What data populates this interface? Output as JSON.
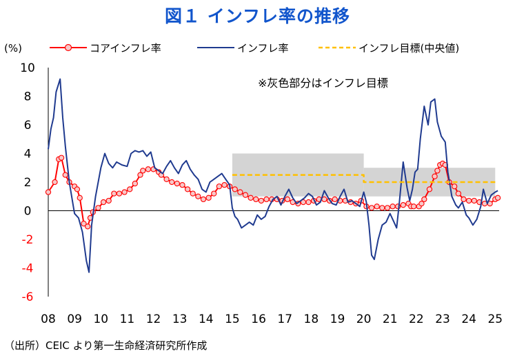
{
  "title": "図１ インフレ率の推移",
  "source": "（出所）CEIC より第一生命経済研究所作成",
  "chart_data": {
    "type": "line",
    "unit_label": "(%)",
    "annotation": "※灰色部分はインフレ目標",
    "ylim": [
      -6,
      10
    ],
    "yticks": [
      -6,
      -4,
      -2,
      0,
      2,
      4,
      6,
      8,
      10
    ],
    "xlim": [
      2008.0,
      2025.15
    ],
    "x_tick_labels": [
      "08",
      "09",
      "10",
      "11",
      "12",
      "13",
      "14",
      "15",
      "16",
      "17",
      "18",
      "19",
      "20",
      "21",
      "22",
      "23",
      "24",
      "25"
    ],
    "legend_position": "top",
    "grid": false,
    "target_bands": [
      {
        "x_start": 2015.0,
        "x_end": 2020.0,
        "low": 1,
        "high": 4
      },
      {
        "x_start": 2020.0,
        "x_end": 2025.0,
        "low": 1,
        "high": 3
      }
    ],
    "series": [
      {
        "name": "コアインフレ率",
        "style": "line-with-markers",
        "color": "#ff0000",
        "x": [
          2008.0,
          2008.25,
          2008.4,
          2008.5,
          2008.65,
          2008.8,
          2009.0,
          2009.1,
          2009.2,
          2009.35,
          2009.5,
          2009.6,
          2009.7,
          2009.9,
          2010.1,
          2010.3,
          2010.5,
          2010.7,
          2010.9,
          2011.1,
          2011.3,
          2011.5,
          2011.6,
          2011.8,
          2012.0,
          2012.2,
          2012.3,
          2012.5,
          2012.7,
          2012.9,
          2013.1,
          2013.3,
          2013.5,
          2013.7,
          2013.9,
          2014.1,
          2014.3,
          2014.5,
          2014.7,
          2014.9,
          2015.1,
          2015.3,
          2015.5,
          2015.7,
          2015.9,
          2016.1,
          2016.3,
          2016.5,
          2016.7,
          2016.9,
          2017.1,
          2017.3,
          2017.5,
          2017.7,
          2017.9,
          2018.1,
          2018.3,
          2018.5,
          2018.7,
          2018.9,
          2019.1,
          2019.3,
          2019.5,
          2019.7,
          2019.9,
          2020.1,
          2020.3,
          2020.5,
          2020.7,
          2020.9,
          2021.1,
          2021.3,
          2021.5,
          2021.7,
          2021.8,
          2021.9,
          2022.1,
          2022.2,
          2022.3,
          2022.5,
          2022.7,
          2022.8,
          2022.9,
          2023.0,
          2023.1,
          2023.25,
          2023.45,
          2023.6,
          2023.8,
          2024.0,
          2024.2,
          2024.4,
          2024.6,
          2024.8,
          2025.0,
          2025.1
        ],
        "values": [
          1.3,
          2.0,
          3.6,
          3.7,
          2.5,
          2.0,
          1.7,
          1.5,
          0.9,
          -0.9,
          -1.1,
          -0.5,
          -0.1,
          0.2,
          0.6,
          0.7,
          1.2,
          1.2,
          1.3,
          1.5,
          1.9,
          2.5,
          2.8,
          2.9,
          2.9,
          2.7,
          2.5,
          2.2,
          2.0,
          1.9,
          1.8,
          1.5,
          1.2,
          1.0,
          0.8,
          0.9,
          1.2,
          1.7,
          1.8,
          1.7,
          1.5,
          1.3,
          1.1,
          0.9,
          0.8,
          0.7,
          0.8,
          0.8,
          0.8,
          0.7,
          0.8,
          0.6,
          0.5,
          0.6,
          0.6,
          0.7,
          0.8,
          0.8,
          0.7,
          0.8,
          0.7,
          0.7,
          0.6,
          0.5,
          0.7,
          0.3,
          0.2,
          0.3,
          0.2,
          0.2,
          0.3,
          0.3,
          0.4,
          0.5,
          0.3,
          0.3,
          0.3,
          0.5,
          0.8,
          1.5,
          2.4,
          2.8,
          3.2,
          3.3,
          3.2,
          2.0,
          1.7,
          1.2,
          0.8,
          0.7,
          0.7,
          0.6,
          0.5,
          0.5,
          0.8,
          0.9
        ]
      },
      {
        "name": "インフレ率",
        "style": "line",
        "color": "#1f3a8f",
        "x": [
          2008.0,
          2008.1,
          2008.2,
          2008.3,
          2008.45,
          2008.55,
          2008.65,
          2008.8,
          2009.0,
          2009.15,
          2009.3,
          2009.45,
          2009.55,
          2009.65,
          2009.8,
          2010.0,
          2010.15,
          2010.3,
          2010.45,
          2010.6,
          2010.8,
          2011.0,
          2011.15,
          2011.3,
          2011.45,
          2011.6,
          2011.75,
          2011.9,
          2012.05,
          2012.2,
          2012.35,
          2012.5,
          2012.65,
          2012.8,
          2012.95,
          2013.1,
          2013.25,
          2013.4,
          2013.55,
          2013.7,
          2013.85,
          2014.0,
          2014.15,
          2014.3,
          2014.45,
          2014.6,
          2014.75,
          2014.9,
          2015.0,
          2015.1,
          2015.2,
          2015.35,
          2015.5,
          2015.65,
          2015.8,
          2015.95,
          2016.1,
          2016.25,
          2016.4,
          2016.55,
          2016.7,
          2016.85,
          2017.0,
          2017.15,
          2017.3,
          2017.45,
          2017.6,
          2017.75,
          2017.9,
          2018.05,
          2018.2,
          2018.35,
          2018.5,
          2018.65,
          2018.8,
          2018.95,
          2019.1,
          2019.25,
          2019.4,
          2019.55,
          2019.7,
          2019.85,
          2020.0,
          2020.1,
          2020.2,
          2020.3,
          2020.4,
          2020.55,
          2020.7,
          2020.85,
          2021.0,
          2021.15,
          2021.25,
          2021.35,
          2021.5,
          2021.65,
          2021.75,
          2021.85,
          2021.95,
          2022.05,
          2022.15,
          2022.3,
          2022.45,
          2022.55,
          2022.7,
          2022.8,
          2022.95,
          2023.1,
          2023.2,
          2023.35,
          2023.5,
          2023.6,
          2023.75,
          2023.9,
          2024.0,
          2024.15,
          2024.3,
          2024.45,
          2024.55,
          2024.7,
          2024.85,
          2025.0,
          2025.1
        ],
        "values": [
          4.3,
          5.7,
          6.5,
          8.3,
          9.2,
          6.5,
          4.5,
          2.0,
          -0.2,
          -0.5,
          -1.5,
          -3.5,
          -4.3,
          -1.0,
          1.0,
          3.0,
          4.0,
          3.3,
          3.0,
          3.4,
          3.2,
          3.1,
          4.0,
          4.2,
          4.1,
          4.2,
          3.8,
          4.1,
          3.0,
          2.8,
          2.6,
          3.1,
          3.5,
          3.0,
          2.6,
          3.2,
          3.5,
          2.9,
          2.5,
          2.2,
          1.5,
          1.3,
          2.0,
          2.2,
          2.4,
          2.6,
          2.2,
          1.8,
          0.2,
          -0.4,
          -0.6,
          -1.2,
          -1.0,
          -0.8,
          -1.0,
          -0.3,
          -0.6,
          -0.4,
          0.3,
          0.8,
          1.0,
          0.4,
          1.0,
          1.5,
          0.9,
          0.5,
          0.7,
          0.9,
          1.2,
          1.0,
          0.4,
          0.6,
          1.4,
          0.9,
          0.5,
          0.4,
          1.0,
          1.5,
          0.6,
          0.7,
          0.5,
          0.3,
          1.3,
          0.6,
          -1.0,
          -3.1,
          -3.4,
          -2.0,
          -1.0,
          -0.8,
          -0.2,
          -0.8,
          -1.2,
          0.5,
          3.4,
          1.6,
          0.7,
          1.5,
          2.7,
          2.9,
          5.0,
          7.3,
          6.0,
          7.6,
          7.8,
          6.2,
          5.2,
          4.8,
          2.7,
          1.0,
          0.4,
          0.2,
          0.6,
          -0.3,
          -0.5,
          -1.0,
          -0.6,
          0.3,
          1.5,
          0.5,
          1.1,
          1.3,
          1.4
        ]
      },
      {
        "name": "インフレ目標(中央値)",
        "style": "dashed",
        "color": "#ffc000",
        "x": [
          2015.0,
          2020.0,
          2020.0,
          2025.0
        ],
        "values": [
          2.5,
          2.5,
          2.0,
          2.0
        ]
      }
    ]
  }
}
